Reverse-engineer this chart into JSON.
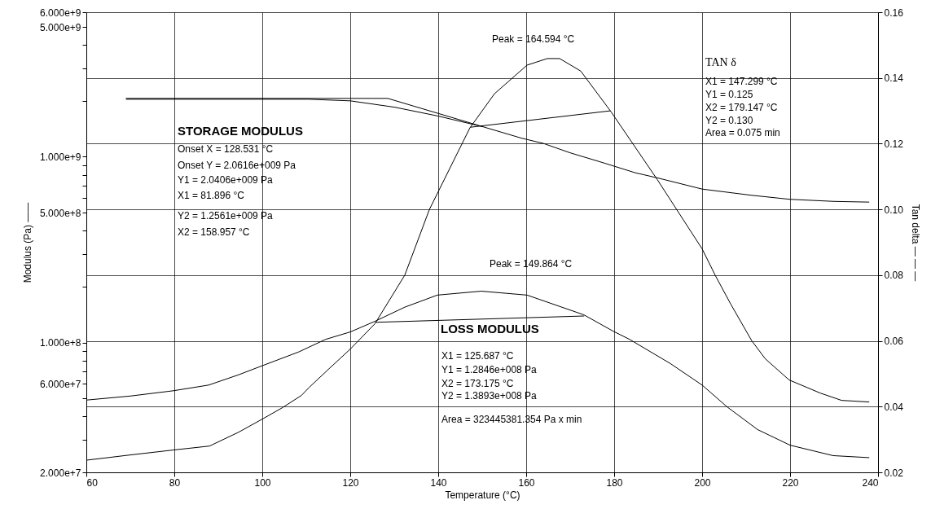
{
  "chart_data": {
    "type": "line",
    "xlabel": "Temperature (°C)",
    "ylabel": "Modulus (Pa) ——",
    "y2label": "Tan delta — — —",
    "xlim": [
      60,
      240
    ],
    "xticks": [
      60,
      80,
      100,
      120,
      140,
      160,
      180,
      200,
      220,
      240
    ],
    "ylim": [
      20000000,
      6000000000
    ],
    "log": "y",
    "yticks": [
      {
        "value": 20000000,
        "label": "2.000e+7"
      },
      {
        "value": 30000000,
        "label": null
      },
      {
        "value": 40000000,
        "label": null
      },
      {
        "value": 50000000,
        "label": null
      },
      {
        "value": 60000000,
        "label": "6.000e+7"
      },
      {
        "value": 70000000,
        "label": null
      },
      {
        "value": 80000000,
        "label": null
      },
      {
        "value": 90000000,
        "label": null
      },
      {
        "value": 100000000,
        "label": "1.000e+8"
      },
      {
        "value": 200000000,
        "label": null
      },
      {
        "value": 300000000,
        "label": null
      },
      {
        "value": 400000000,
        "label": null
      },
      {
        "value": 500000000,
        "label": "5.000e+8"
      },
      {
        "value": 600000000,
        "label": null
      },
      {
        "value": 700000000,
        "label": null
      },
      {
        "value": 800000000,
        "label": null
      },
      {
        "value": 900000000,
        "label": null
      },
      {
        "value": 1000000000,
        "label": "1.000e+9"
      },
      {
        "value": 2000000000,
        "label": null
      },
      {
        "value": 3000000000,
        "label": null
      },
      {
        "value": 4000000000,
        "label": null
      },
      {
        "value": 5000000000,
        "label": "5.000e+9"
      },
      {
        "value": 6000000000,
        "label": "6.000e+9"
      }
    ],
    "y2lim": [
      0.02,
      0.16
    ],
    "y2ticks": [
      0.02,
      0.04,
      0.06,
      0.08,
      {
        "value": 0.1,
        "label": "0.10"
      },
      0.12,
      0.14,
      0.16
    ],
    "grid": true,
    "marker": "none",
    "line_style": "solid",
    "series": [
      {
        "color": "#000000",
        "axis": "y",
        "x": [
          69,
          80,
          100,
          110.5,
          120,
          130,
          139.8,
          150.2,
          158.9,
          163.9,
          170,
          177.4,
          184.8,
          189.8,
          200,
          211.3,
          220,
          230,
          238
        ],
        "values": [
          2040000000,
          2040000000,
          2040000000,
          2040000000,
          2000000000,
          1850000000,
          1660000000,
          1450000000,
          1260000000,
          1180000000,
          1050000000,
          930000000,
          820000000,
          770000000,
          670000000,
          620000000,
          590000000,
          575000000,
          570000000
        ]
      },
      {
        "color": "#000000",
        "axis": "y",
        "x": [
          60,
          70,
          79.8,
          87.8,
          94.6,
          100,
          108.3,
          114.4,
          120,
          125.6,
          132.4,
          139.8,
          149.8,
          160.2,
          173.1,
          179.8,
          183.5,
          192.8,
          200,
          205.7,
          212.6,
          220,
          229.8,
          238
        ],
        "values": [
          49000000,
          51500000,
          55000000,
          59000000,
          67000000,
          75000000,
          89000000,
          104000000,
          114000000,
          130000000,
          155000000,
          180000000,
          189000000,
          180000000,
          141000000,
          115000000,
          104000000,
          77000000,
          59000000,
          45000000,
          34000000,
          28000000,
          24600000,
          24000000
        ]
      },
      {
        "color": "#000000",
        "axis": "y2",
        "x": [
          60,
          70,
          79.8,
          88,
          94.6,
          100,
          104.6,
          108.9,
          110.7,
          115,
          120,
          125.6,
          132.4,
          138,
          147.2,
          152.8,
          160.2,
          164.8,
          167.6,
          172.4,
          179.3,
          189.8,
          200,
          203,
          206.5,
          211.3,
          214.4,
          219.8,
          226.9,
          231.7,
          238
        ],
        "values": [
          0.0237,
          0.0253,
          0.0268,
          0.028,
          0.0322,
          0.0362,
          0.0397,
          0.0434,
          0.0459,
          0.0513,
          0.0575,
          0.0652,
          0.08,
          0.1,
          0.1248,
          0.1352,
          0.1439,
          0.1459,
          0.1459,
          0.1421,
          0.1297,
          0.1091,
          0.088,
          0.0799,
          0.0712,
          0.06,
          0.0545,
          0.0481,
          0.0441,
          0.0419,
          0.0414
        ]
      },
      {
        "color": "#000000",
        "axis": "y",
        "x": [
          69,
          128.531,
          150.2
        ],
        "values": [
          2061600000,
          2061600000,
          1450000000
        ]
      },
      {
        "color": "#000000",
        "axis": "y",
        "x": [
          125.687,
          173.175
        ],
        "values": [
          128460000,
          138930000
        ]
      },
      {
        "color": "#000000",
        "axis": "y2",
        "x": [
          147.299,
          179.147
        ],
        "values": [
          0.125,
          0.13
        ]
      }
    ],
    "annotations": [
      "Peak = 164.594 °C",
      "TAN δ",
      "X1 = 147.299 °C",
      "Y1 = 0.125",
      "X2 = 179.147 °C",
      "Y2 = 0.130",
      "Area = 0.075  min",
      "STORAGE MODULUS",
      "Onset X = 128.531 °C",
      "Onset Y = 2.0616e+009 Pa",
      "Y1 = 2.0406e+009 Pa",
      "X1 = 81.896 °C",
      "Y2 = 1.2561e+009 Pa",
      "X2 = 158.957 °C",
      "Peak = 149.864 °C",
      "LOSS MODULUS",
      "X1 = 125.687 °C",
      "Y1 = 1.2846e+008 Pa",
      "X2 = 173.175 °C",
      "Y2 = 1.3893e+008 Pa",
      "Area = 323445381.354 Pa x min"
    ]
  }
}
